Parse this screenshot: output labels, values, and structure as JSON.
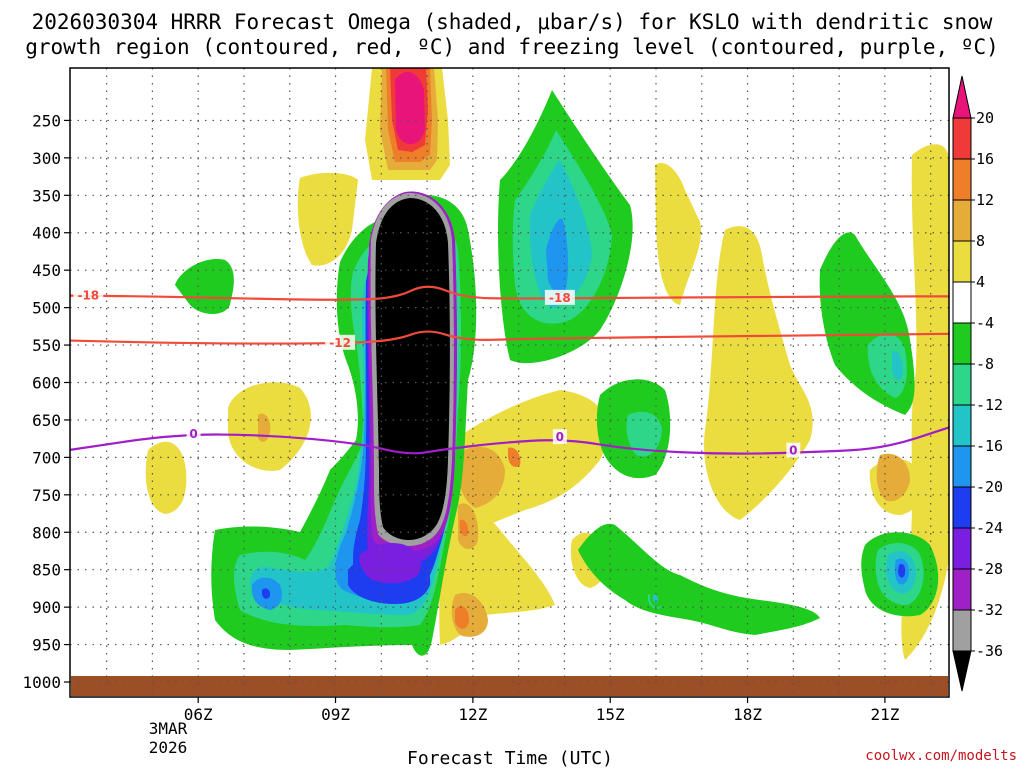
{
  "chart_data": {
    "type": "heatmap",
    "title_lines": [
      "2026030304 HRRR Forecast Omega (shaded, μbar/s) for KSLO with dendritic snow",
      "growth region (contoured, red, ºC) and freezing level (contoured, purple, ºC)"
    ],
    "xlabel": "Forecast Time (UTC)",
    "ylabel": "",
    "x_range_hours": [
      3.2,
      22.4
    ],
    "y_levels": [
      250,
      300,
      350,
      400,
      450,
      500,
      550,
      600,
      650,
      700,
      750,
      800,
      850,
      900,
      950,
      1000
    ],
    "y_range": [
      180,
      1020
    ],
    "x_ticks": [
      {
        "hour": 6,
        "label": "06Z"
      },
      {
        "hour": 9,
        "label": "09Z"
      },
      {
        "hour": 12,
        "label": "12Z"
      },
      {
        "hour": 15,
        "label": "15Z"
      },
      {
        "hour": 18,
        "label": "18Z"
      },
      {
        "hour": 21,
        "label": "21Z"
      }
    ],
    "date_label_lines": [
      "3MAR",
      "2026"
    ],
    "colorbar": {
      "labels": [
        "20",
        "16",
        "12",
        "8",
        "4",
        "-4",
        "-8",
        "-12",
        "-16",
        "-20",
        "-24",
        "-28",
        "-32",
        "-36"
      ],
      "bands": [
        {
          "from": 16,
          "to": 20,
          "color": "#f03a3a"
        },
        {
          "from": 12,
          "to": 16,
          "color": "#ef7e2a"
        },
        {
          "from": 8,
          "to": 12,
          "color": "#e6ac3a"
        },
        {
          "from": 4,
          "to": 8,
          "color": "#ebdc40"
        },
        {
          "from": -4,
          "to": 4,
          "color": "#ffffff"
        },
        {
          "from": -8,
          "to": -4,
          "color": "#1ecb1e"
        },
        {
          "from": -12,
          "to": -8,
          "color": "#2ed68a"
        },
        {
          "from": -16,
          "to": -12,
          "color": "#22c4c8"
        },
        {
          "from": -20,
          "to": -16,
          "color": "#1e96f0"
        },
        {
          "from": -24,
          "to": -20,
          "color": "#1e3cf0"
        },
        {
          "from": -28,
          "to": -24,
          "color": "#7a1ee0"
        },
        {
          "from": -32,
          "to": -28,
          "color": "#a020c8"
        },
        {
          "from": -36,
          "to": -32,
          "color": "#a0a0a0"
        }
      ],
      "top_arrow_color": "#e8147a",
      "bottom_arrow_color": "#000000"
    },
    "shading_colors": {
      "magenta": "#e8147a",
      "red": "#f03a3a",
      "orange": "#ef7e2a",
      "amber": "#e6ac3a",
      "yellow": "#ebdc40",
      "green": "#1ecb1e",
      "sea_green": "#2ed68a",
      "cyan": "#22c4c8",
      "sky": "#1e96f0",
      "blue": "#1e3cf0",
      "violet": "#7a1ee0",
      "purple": "#a020c8",
      "gray": "#a0a0a0",
      "black": "#000000"
    },
    "surface_color": "#9c4f25",
    "contours": [
      {
        "name": "dgz-minus18",
        "color": "#f04a3a",
        "label": "-18",
        "label_points": [
          [
            3.6,
            484
          ],
          [
            13.9,
            487
          ]
        ],
        "points": [
          [
            3.2,
            484
          ],
          [
            5,
            485
          ],
          [
            7,
            488
          ],
          [
            9,
            490
          ],
          [
            10.3,
            488
          ],
          [
            11,
            467
          ],
          [
            11.8,
            487
          ],
          [
            13,
            488
          ],
          [
            15,
            487
          ],
          [
            18,
            486
          ],
          [
            21,
            485
          ],
          [
            22.4,
            485
          ]
        ]
      },
      {
        "name": "dgz-minus12",
        "color": "#f04a3a",
        "label": "-12",
        "label_points": [
          [
            9.1,
            547
          ]
        ],
        "points": [
          [
            3.2,
            544
          ],
          [
            6,
            548
          ],
          [
            9,
            548
          ],
          [
            10.3,
            544
          ],
          [
            11,
            528
          ],
          [
            11.8,
            544
          ],
          [
            13,
            542
          ],
          [
            15,
            540
          ],
          [
            18,
            538
          ],
          [
            21,
            536
          ],
          [
            22.4,
            535
          ]
        ]
      },
      {
        "name": "freezing-level",
        "color": "#a21ec8",
        "label": "0",
        "label_points": [
          [
            5.9,
            669
          ],
          [
            13.9,
            673
          ],
          [
            19,
            691
          ]
        ],
        "points": [
          [
            3.2,
            690
          ],
          [
            5.5,
            669
          ],
          [
            7.5,
            670
          ],
          [
            9.5,
            681
          ],
          [
            10.6,
            697
          ],
          [
            11.3,
            690
          ],
          [
            12.5,
            681
          ],
          [
            14,
            675
          ],
          [
            15.5,
            690
          ],
          [
            17.5,
            696
          ],
          [
            19.5,
            693
          ],
          [
            21,
            688
          ],
          [
            22.4,
            660
          ]
        ]
      }
    ],
    "credit": "coolwx.com/modelts"
  }
}
